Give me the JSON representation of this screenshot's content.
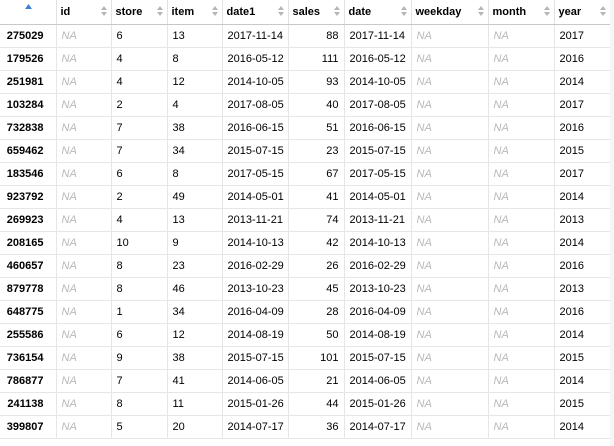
{
  "table": {
    "columns": [
      {
        "key": "id",
        "label": "id"
      },
      {
        "key": "store",
        "label": "store"
      },
      {
        "key": "item",
        "label": "item"
      },
      {
        "key": "date1",
        "label": "date1"
      },
      {
        "key": "sales",
        "label": "sales"
      },
      {
        "key": "date",
        "label": "date"
      },
      {
        "key": "weekday",
        "label": "weekday"
      },
      {
        "key": "month",
        "label": "month"
      },
      {
        "key": "year",
        "label": "year"
      }
    ],
    "rows": [
      {
        "rowname": "275029",
        "id": "NA",
        "store": "6",
        "item": "13",
        "date1": "2017-11-14",
        "sales": "88",
        "date": "2017-11-14",
        "weekday": "NA",
        "month": "NA",
        "year": "2017"
      },
      {
        "rowname": "179526",
        "id": "NA",
        "store": "4",
        "item": "8",
        "date1": "2016-05-12",
        "sales": "111",
        "date": "2016-05-12",
        "weekday": "NA",
        "month": "NA",
        "year": "2016"
      },
      {
        "rowname": "251981",
        "id": "NA",
        "store": "4",
        "item": "12",
        "date1": "2014-10-05",
        "sales": "93",
        "date": "2014-10-05",
        "weekday": "NA",
        "month": "NA",
        "year": "2014"
      },
      {
        "rowname": "103284",
        "id": "NA",
        "store": "2",
        "item": "4",
        "date1": "2017-08-05",
        "sales": "40",
        "date": "2017-08-05",
        "weekday": "NA",
        "month": "NA",
        "year": "2017"
      },
      {
        "rowname": "732838",
        "id": "NA",
        "store": "7",
        "item": "38",
        "date1": "2016-06-15",
        "sales": "51",
        "date": "2016-06-15",
        "weekday": "NA",
        "month": "NA",
        "year": "2016"
      },
      {
        "rowname": "659462",
        "id": "NA",
        "store": "7",
        "item": "34",
        "date1": "2015-07-15",
        "sales": "23",
        "date": "2015-07-15",
        "weekday": "NA",
        "month": "NA",
        "year": "2015"
      },
      {
        "rowname": "183546",
        "id": "NA",
        "store": "6",
        "item": "8",
        "date1": "2017-05-15",
        "sales": "67",
        "date": "2017-05-15",
        "weekday": "NA",
        "month": "NA",
        "year": "2017"
      },
      {
        "rowname": "923792",
        "id": "NA",
        "store": "2",
        "item": "49",
        "date1": "2014-05-01",
        "sales": "41",
        "date": "2014-05-01",
        "weekday": "NA",
        "month": "NA",
        "year": "2014"
      },
      {
        "rowname": "269923",
        "id": "NA",
        "store": "4",
        "item": "13",
        "date1": "2013-11-21",
        "sales": "74",
        "date": "2013-11-21",
        "weekday": "NA",
        "month": "NA",
        "year": "2013"
      },
      {
        "rowname": "208165",
        "id": "NA",
        "store": "10",
        "item": "9",
        "date1": "2014-10-13",
        "sales": "42",
        "date": "2014-10-13",
        "weekday": "NA",
        "month": "NA",
        "year": "2014"
      },
      {
        "rowname": "460657",
        "id": "NA",
        "store": "8",
        "item": "23",
        "date1": "2016-02-29",
        "sales": "26",
        "date": "2016-02-29",
        "weekday": "NA",
        "month": "NA",
        "year": "2016"
      },
      {
        "rowname": "879778",
        "id": "NA",
        "store": "8",
        "item": "46",
        "date1": "2013-10-23",
        "sales": "45",
        "date": "2013-10-23",
        "weekday": "NA",
        "month": "NA",
        "year": "2013"
      },
      {
        "rowname": "648775",
        "id": "NA",
        "store": "1",
        "item": "34",
        "date1": "2016-04-09",
        "sales": "28",
        "date": "2016-04-09",
        "weekday": "NA",
        "month": "NA",
        "year": "2016"
      },
      {
        "rowname": "255586",
        "id": "NA",
        "store": "6",
        "item": "12",
        "date1": "2014-08-19",
        "sales": "50",
        "date": "2014-08-19",
        "weekday": "NA",
        "month": "NA",
        "year": "2014"
      },
      {
        "rowname": "736154",
        "id": "NA",
        "store": "9",
        "item": "38",
        "date1": "2015-07-15",
        "sales": "101",
        "date": "2015-07-15",
        "weekday": "NA",
        "month": "NA",
        "year": "2015"
      },
      {
        "rowname": "786877",
        "id": "NA",
        "store": "7",
        "item": "41",
        "date1": "2014-06-05",
        "sales": "21",
        "date": "2014-06-05",
        "weekday": "NA",
        "month": "NA",
        "year": "2014"
      },
      {
        "rowname": "241138",
        "id": "NA",
        "store": "8",
        "item": "11",
        "date1": "2015-01-26",
        "sales": "44",
        "date": "2015-01-26",
        "weekday": "NA",
        "month": "NA",
        "year": "2015"
      },
      {
        "rowname": "399807",
        "id": "NA",
        "store": "5",
        "item": "20",
        "date1": "2014-07-17",
        "sales": "36",
        "date": "2014-07-17",
        "weekday": "NA",
        "month": "NA",
        "year": "2014"
      }
    ]
  },
  "colors": {
    "sort_active": "#3b7fd6",
    "sort_inactive": "#b5b5b5",
    "na_text": "#b8b8b8",
    "grid_line": "#e6e6e6"
  },
  "icons": {
    "index_sort": "sort-ascending-icon",
    "column_sort": "sort-toggle-icon"
  }
}
